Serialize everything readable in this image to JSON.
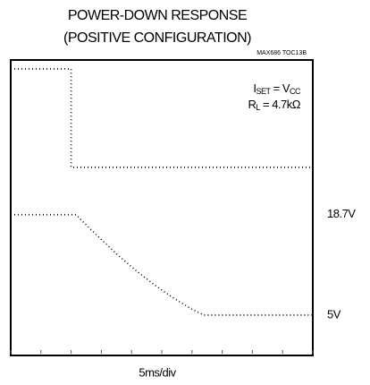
{
  "chart_data": {
    "type": "line",
    "title": [
      "POWER-DOWN RESPONSE",
      "(POSITIVE CONFIGURATION)"
    ],
    "figure_id": "MAX686 TOC13B",
    "xlabel": "5ms/div",
    "annotations": [
      [
        "I",
        "SET",
        " = V",
        "CC"
      ],
      [
        "R",
        "L",
        " = 4.7kΩ"
      ]
    ],
    "xlim": [
      0,
      50
    ],
    "xticks": [
      0,
      5,
      10,
      15,
      20,
      25,
      30,
      35,
      40,
      45,
      50
    ],
    "ylim": [
      -0.5,
      39.8
    ],
    "yticks": [
      {
        "value": 18.7,
        "label": "18.7V"
      },
      {
        "value": 5,
        "label": "5V"
      }
    ],
    "y2lim": [
      -1.91,
      1.09
    ],
    "series": [
      {
        "name": null,
        "color": "#000000",
        "axis": "y2",
        "x": [
          0,
          10,
          10,
          50
        ],
        "values": [
          1,
          1,
          0,
          0
        ]
      },
      {
        "name": null,
        "color": "#000000",
        "x": [
          0,
          10.8,
          12,
          15,
          18,
          21,
          24,
          27,
          30,
          32,
          50
        ],
        "values": [
          18.7,
          18.7,
          17.7,
          15.3,
          13.0,
          10.9,
          9.0,
          7.3,
          5.8,
          5.0,
          5.0
        ]
      }
    ]
  }
}
